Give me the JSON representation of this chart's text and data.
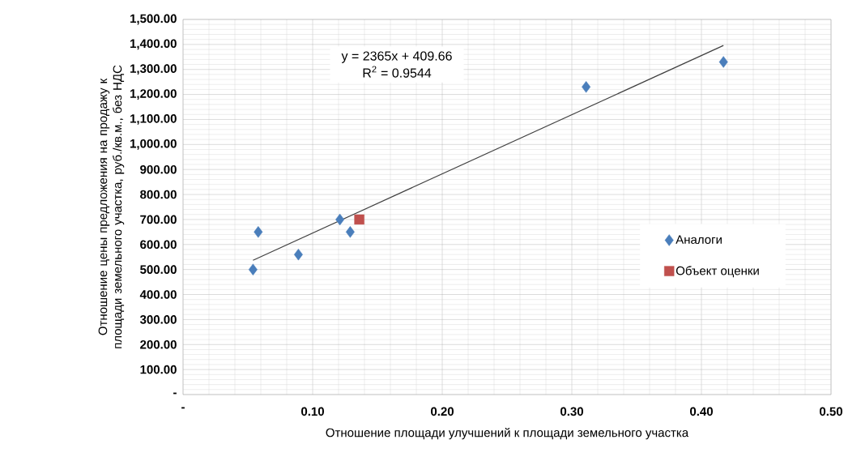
{
  "chart_data": {
    "type": "scatter",
    "xlabel": "Отношение площади улучшений к площади земельного участка",
    "ylabel": "Отношение цены предложения на продажу к площади земельного участка, руб./кв.м., без НДС",
    "annotations": [
      "y = 2365x + 409.66",
      "R$^{2}$ = 0.9544"
    ],
    "series": [
      {
        "name": "Аналоги",
        "type": "scatter",
        "color": "#4a7ebb",
        "marker": "diamond",
        "x": [
          0.054,
          0.058,
          0.089,
          0.121,
          0.129,
          0.311,
          0.417
        ],
        "values": [
          500,
          650,
          560,
          700,
          650,
          1230,
          1330
        ]
      },
      {
        "name": "Объект оценки",
        "type": "scatter",
        "color": "#c0504d",
        "marker": "square",
        "x": [
          0.136
        ],
        "values": [
          700
        ]
      },
      {
        "type": "line",
        "color": "#404040",
        "marker": "none",
        "x": [
          0.054,
          0.417
        ],
        "values": [
          537,
          1396
        ]
      }
    ],
    "xlim": [
      0,
      0.5
    ],
    "xticks": [
      {
        "value": 0,
        "label": "-"
      },
      {
        "value": 0.1,
        "label": "0.10"
      },
      {
        "value": 0.2,
        "label": "0.20"
      },
      {
        "value": 0.3,
        "label": "0.30"
      },
      {
        "value": 0.4,
        "label": "0.40"
      },
      {
        "value": 0.5,
        "label": "0.50"
      }
    ],
    "ylim": [
      0,
      1500
    ],
    "yticks": [
      {
        "value": 0,
        "label": "-"
      },
      {
        "value": 100,
        "label": "100.00"
      },
      {
        "value": 200,
        "label": "200.00"
      },
      {
        "value": 300,
        "label": "300.00"
      },
      {
        "value": 400,
        "label": "400.00"
      },
      {
        "value": 500,
        "label": "500.00"
      },
      {
        "value": 600,
        "label": "600.00"
      },
      {
        "value": 700,
        "label": "700.00"
      },
      {
        "value": 800,
        "label": "800.00"
      },
      {
        "value": 900,
        "label": "900.00"
      },
      {
        "value": 1000,
        "label": "1,000.00"
      },
      {
        "value": 1100,
        "label": "1,100.00"
      },
      {
        "value": 1200,
        "label": "1,200.00"
      },
      {
        "value": 1300,
        "label": "1,300.00"
      },
      {
        "value": 1400,
        "label": "1,400.00"
      },
      {
        "value": 1500,
        "label": "1,500.00"
      }
    ],
    "grid": true,
    "legend": "right"
  }
}
